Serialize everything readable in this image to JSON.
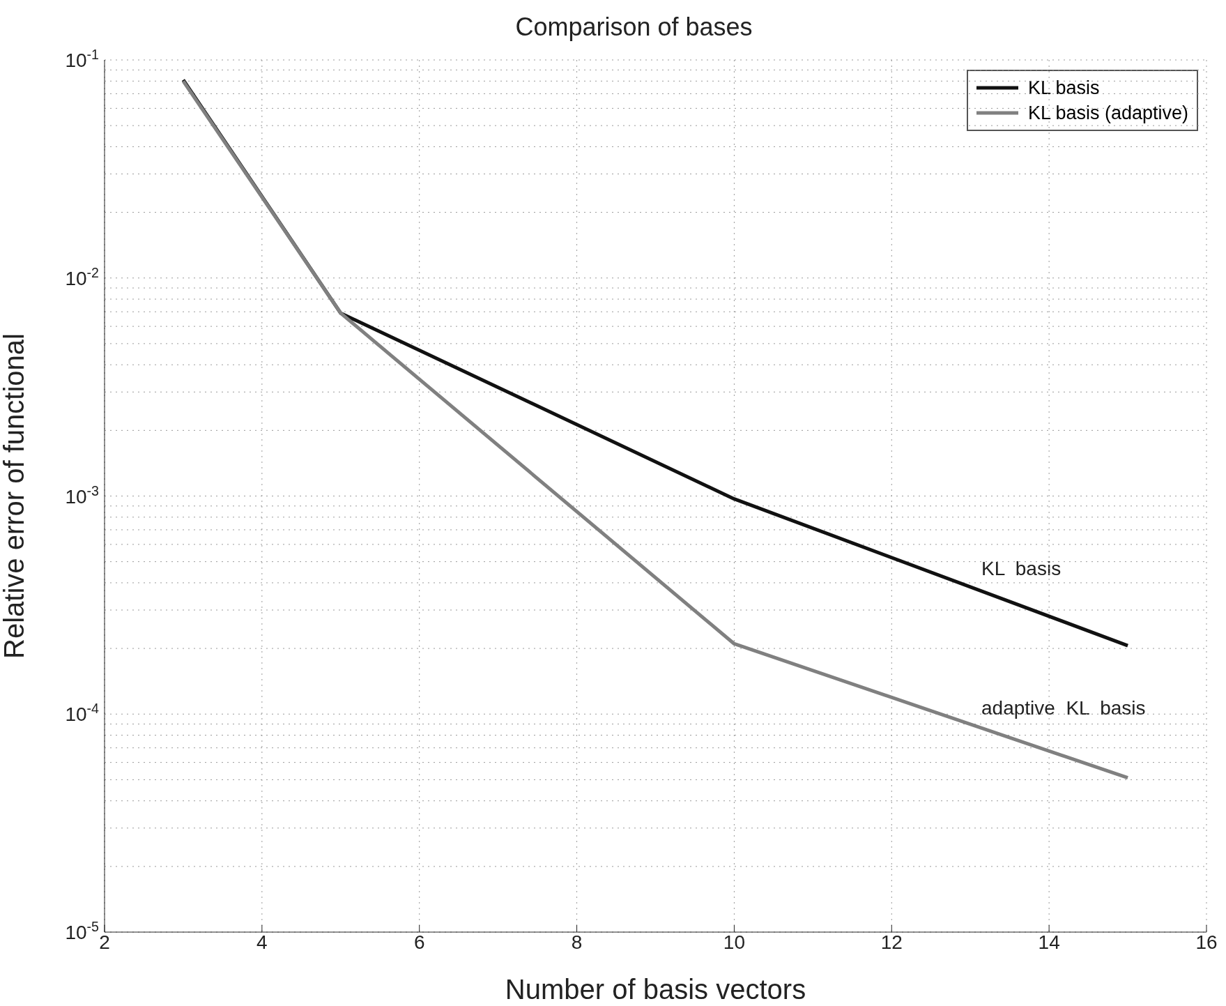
{
  "chart_data": {
    "type": "line",
    "title": "Comparison of bases",
    "xlabel": "Number of basis vectors",
    "ylabel": "Relative error of functional",
    "x": [
      3,
      5,
      10,
      15
    ],
    "series": [
      {
        "name": "KL basis",
        "color": "#111111",
        "values": [
          0.081,
          0.0069,
          0.00097,
          0.000206
        ]
      },
      {
        "name": "KL basis (adaptive)",
        "color": "#808080",
        "values": [
          0.08,
          0.0069,
          0.00021,
          5.1e-05
        ]
      }
    ],
    "xlim": [
      2,
      16
    ],
    "xticks": [
      2,
      4,
      6,
      8,
      10,
      12,
      14,
      16
    ],
    "ylim": [
      1e-05,
      0.1
    ],
    "log": "y",
    "yticks": [
      {
        "value": 1e-05,
        "label": "10$^{-5}$"
      },
      {
        "value": 2e-05,
        "label": null
      },
      {
        "value": 3e-05,
        "label": null
      },
      {
        "value": 4e-05,
        "label": null
      },
      {
        "value": 5e-05,
        "label": null
      },
      {
        "value": 6e-05,
        "label": null
      },
      {
        "value": 7e-05,
        "label": null
      },
      {
        "value": 8e-05,
        "label": null
      },
      {
        "value": 9e-05,
        "label": null
      },
      {
        "value": 0.0001,
        "label": "10$^{-4}$"
      },
      {
        "value": 0.0002,
        "label": null
      },
      {
        "value": 0.0003,
        "label": null
      },
      {
        "value": 0.0004,
        "label": null
      },
      {
        "value": 0.0005,
        "label": null
      },
      {
        "value": 0.0006,
        "label": null
      },
      {
        "value": 0.0007,
        "label": null
      },
      {
        "value": 0.0008,
        "label": null
      },
      {
        "value": 0.0009,
        "label": null
      },
      {
        "value": 0.001,
        "label": "10$^{-3}$"
      },
      {
        "value": 0.002,
        "label": null
      },
      {
        "value": 0.003,
        "label": null
      },
      {
        "value": 0.004,
        "label": null
      },
      {
        "value": 0.005,
        "label": null
      },
      {
        "value": 0.006,
        "label": null
      },
      {
        "value": 0.007,
        "label": null
      },
      {
        "value": 0.008,
        "label": null
      },
      {
        "value": 0.009,
        "label": null
      },
      {
        "value": 0.01,
        "label": "10$^{-2}$"
      },
      {
        "value": 0.02,
        "label": null
      },
      {
        "value": 0.03,
        "label": null
      },
      {
        "value": 0.04,
        "label": null
      },
      {
        "value": 0.05,
        "label": null
      },
      {
        "value": 0.06,
        "label": null
      },
      {
        "value": 0.07,
        "label": null
      },
      {
        "value": 0.08,
        "label": null
      },
      {
        "value": 0.09,
        "label": null
      },
      {
        "value": 0.1,
        "label": "10$^{-1}$"
      }
    ],
    "grid": true,
    "legend": "top right",
    "marker": "none",
    "line_style": "solid",
    "annotations": [
      "KL  basis",
      "adaptive  KL  basis"
    ]
  }
}
